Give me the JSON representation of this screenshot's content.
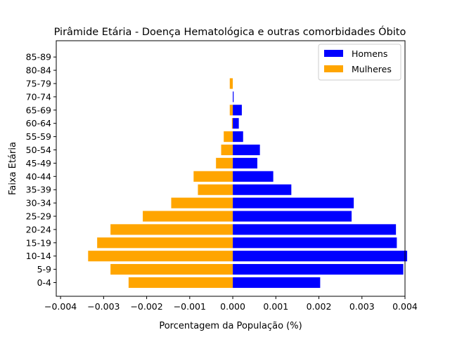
{
  "chart_data": {
    "type": "bar",
    "orientation": "horizontal",
    "title": "Pirâmide Etária - Doença Hematológica e outras comorbidades Óbito",
    "xlabel": "Porcentagem da População (%)",
    "ylabel": "Faixa Etária",
    "xlim": [
      -0.0041,
      0.004
    ],
    "xticks": [
      -0.004,
      -0.003,
      -0.002,
      -0.001,
      0.0,
      0.001,
      0.002,
      0.003,
      0.004
    ],
    "xtick_labels": [
      "−0.004",
      "−0.003",
      "−0.002",
      "−0.001",
      "0.000",
      "0.001",
      "0.002",
      "0.003",
      "0.004"
    ],
    "categories": [
      "0-4",
      "5-9",
      "10-14",
      "15-19",
      "20-24",
      "25-29",
      "30-34",
      "35-39",
      "40-44",
      "45-49",
      "50-54",
      "55-59",
      "60-64",
      "65-69",
      "70-74",
      "75-79",
      "80-84",
      "85-89"
    ],
    "series": [
      {
        "name": "Homens",
        "color": "#0000ff",
        "values": [
          0.00203,
          0.00396,
          0.00405,
          0.00381,
          0.00379,
          0.00276,
          0.00281,
          0.00136,
          0.00094,
          0.00057,
          0.00063,
          0.00024,
          0.00014,
          0.00021,
          2e-05,
          0.0,
          0.0,
          0.0
        ]
      },
      {
        "name": "Mulheres",
        "color": "#ffa500",
        "values": [
          -0.00242,
          -0.00284,
          -0.00336,
          -0.00315,
          -0.00284,
          -0.00209,
          -0.00143,
          -0.00081,
          -0.00091,
          -0.00039,
          -0.00027,
          -0.00021,
          -2e-05,
          -7e-05,
          0.0,
          -7e-05,
          0.0,
          0.0
        ]
      }
    ],
    "legend_position": "top-right",
    "grid": false
  }
}
